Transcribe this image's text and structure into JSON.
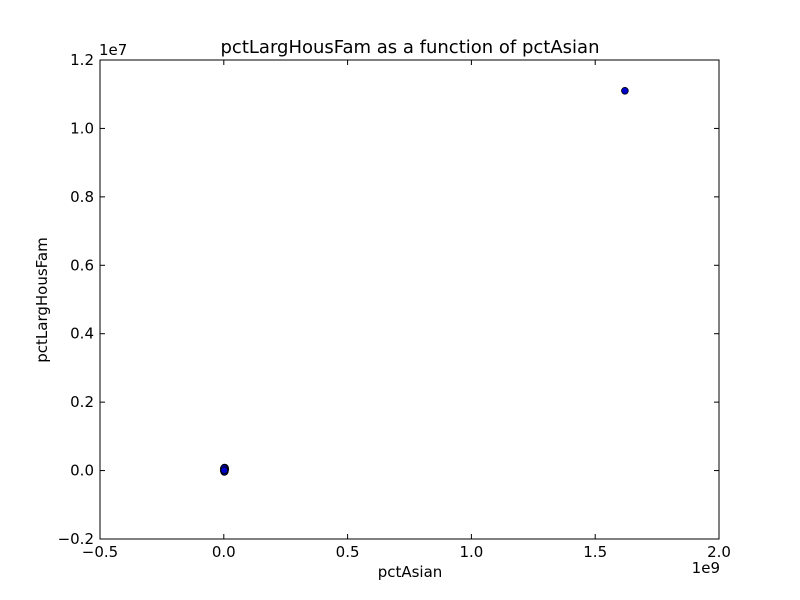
{
  "chart_data": {
    "type": "scatter",
    "title": "pctLargHousFam as a function of pctAsian",
    "xlabel": "pctAsian",
    "ylabel": "pctLargHousFam",
    "x_offset_label": "1e9",
    "y_offset_label": "1e7",
    "xlim": [
      -0.5,
      2.0
    ],
    "ylim": [
      -0.2,
      1.2
    ],
    "x_ticks": [
      -0.5,
      0.0,
      0.5,
      1.0,
      1.5,
      2.0
    ],
    "x_tick_labels": [
      "−0.5",
      "0.0",
      "0.5",
      "1.0",
      "1.5",
      "2.0"
    ],
    "y_ticks": [
      -0.2,
      0.0,
      0.2,
      0.4,
      0.6,
      0.8,
      1.0,
      1.2
    ],
    "y_tick_labels": [
      "−0.2",
      "0.0",
      "0.2",
      "0.4",
      "0.6",
      "0.8",
      "1.0",
      "1.2"
    ],
    "grid": false,
    "marker_color": "#0000cc",
    "marker_edge_color": "#000000",
    "points": [
      {
        "x": 0.0,
        "y": 0.0
      },
      {
        "x": 0.001,
        "y": 0.003
      },
      {
        "x": 0.002,
        "y": 0.006
      },
      {
        "x": 0.003,
        "y": 0.002
      },
      {
        "x": 0.004,
        "y": 0.005
      },
      {
        "x": 0.005,
        "y": 0.008
      },
      {
        "x": 0.006,
        "y": 0.004
      },
      {
        "x": 0.002,
        "y": -0.004
      },
      {
        "x": 0.001,
        "y": -0.002
      },
      {
        "x": 0.004,
        "y": -0.003
      },
      {
        "x": 0.0,
        "y": 0.006
      },
      {
        "x": 0.003,
        "y": 0.009
      },
      {
        "x": 0.005,
        "y": 0.001
      },
      {
        "x": 0.001,
        "y": 0.007
      },
      {
        "x": 0.002,
        "y": 0.001
      },
      {
        "x": 1.62,
        "y": 1.11
      }
    ]
  }
}
